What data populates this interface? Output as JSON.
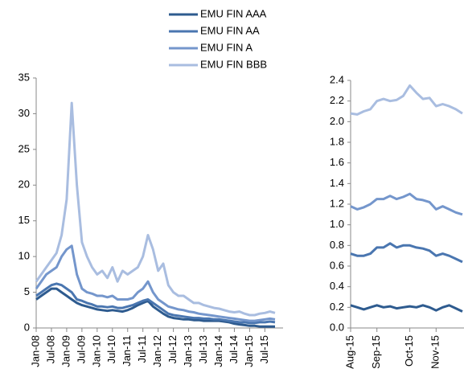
{
  "chart_data": [
    {
      "type": "line",
      "categories": [
        "Jan-08",
        null,
        null,
        "Jul-08",
        null,
        null,
        "Jan-09",
        null,
        null,
        "Jul-09",
        null,
        null,
        "Jan-10",
        null,
        null,
        "Jul-10",
        null,
        null,
        "Jan-11",
        null,
        null,
        "Jul-11",
        null,
        null,
        "Jan-12",
        null,
        null,
        "Jul-12",
        null,
        null,
        "Jan-13",
        null,
        null,
        "Jul-13",
        null,
        null,
        "Jan-14",
        null,
        null,
        "Jul-14",
        null,
        null,
        "Jan-15",
        null,
        null,
        "Jul-15",
        null,
        null
      ],
      "series": [
        {
          "name": "EMU FIN AAA",
          "color": "#2e5b8f",
          "values": [
            4,
            4.5,
            5,
            5.5,
            5.5,
            5,
            4.5,
            4,
            3.5,
            3.2,
            3,
            2.8,
            2.6,
            2.5,
            2.4,
            2.5,
            2.4,
            2.3,
            2.5,
            2.8,
            3.2,
            3.5,
            3.8,
            3,
            2.5,
            2,
            1.6,
            1.4,
            1.3,
            1.2,
            1.2,
            1.1,
            1.1,
            1,
            1,
            1,
            1,
            0.9,
            0.8,
            0.6,
            0.5,
            0.4,
            0.3,
            0.3,
            0.2,
            0.2,
            0.2,
            0.2
          ]
        },
        {
          "name": "EMU FIN AA",
          "color": "#4a76b0",
          "values": [
            4.5,
            5,
            5.5,
            6,
            6.2,
            6,
            5.5,
            5,
            4,
            3.8,
            3.5,
            3.3,
            3,
            3,
            2.9,
            3,
            2.8,
            2.8,
            3,
            3.2,
            3.5,
            3.8,
            4,
            3.5,
            3,
            2.5,
            2,
            1.8,
            1.7,
            1.6,
            1.5,
            1.4,
            1.4,
            1.3,
            1.3,
            1.2,
            1.2,
            1.1,
            1,
            0.9,
            0.8,
            0.8,
            0.7,
            0.7,
            0.8,
            0.8,
            0.9,
            0.8
          ]
        },
        {
          "name": "EMU FIN A",
          "color": "#7496cc",
          "values": [
            5.5,
            6.5,
            7.5,
            8,
            8.5,
            10,
            11,
            11.5,
            7.5,
            5.5,
            5,
            4.8,
            4.5,
            4.5,
            4.3,
            4.5,
            4,
            4,
            4,
            4.2,
            5,
            5.5,
            6.5,
            5,
            4,
            3.5,
            3,
            2.8,
            2.6,
            2.5,
            2.3,
            2.2,
            2,
            1.9,
            1.8,
            1.7,
            1.6,
            1.5,
            1.4,
            1.3,
            1.2,
            1.1,
            1,
            1,
            1.1,
            1.2,
            1.3,
            1.2
          ]
        },
        {
          "name": "EMU FIN BBB",
          "color": "#a9bde0",
          "values": [
            6.5,
            7.5,
            8.5,
            9.5,
            10.5,
            13,
            18,
            31.5,
            20,
            12,
            10,
            8.5,
            7.5,
            8,
            7,
            8.5,
            6.5,
            8,
            7.5,
            8,
            8.5,
            10,
            13,
            11,
            8,
            9,
            6,
            5,
            4.5,
            4.5,
            4,
            3.5,
            3.5,
            3.2,
            3,
            2.8,
            2.7,
            2.5,
            2.3,
            2.2,
            2.3,
            2,
            1.8,
            1.8,
            2,
            2.1,
            2.3,
            2.1
          ]
        }
      ],
      "ylim": [
        0,
        35
      ],
      "yticks": [
        0,
        5,
        10,
        15,
        20,
        25,
        30,
        35
      ],
      "grid": false
    },
    {
      "type": "line",
      "categories": [
        "Aug-15",
        null,
        null,
        null,
        "Sep-15",
        null,
        null,
        null,
        null,
        "Oct-15",
        null,
        null,
        null,
        "Nov-15",
        null,
        null,
        null,
        null
      ],
      "series": [
        {
          "color": "#2e5b8f",
          "values": [
            0.22,
            0.2,
            0.18,
            0.2,
            0.22,
            0.2,
            0.21,
            0.19,
            0.2,
            0.21,
            0.2,
            0.22,
            0.2,
            0.17,
            0.2,
            0.22,
            0.19,
            0.16
          ]
        },
        {
          "color": "#4a76b0",
          "values": [
            0.72,
            0.7,
            0.7,
            0.72,
            0.78,
            0.78,
            0.82,
            0.78,
            0.8,
            0.8,
            0.78,
            0.77,
            0.75,
            0.7,
            0.72,
            0.7,
            0.67,
            0.64
          ]
        },
        {
          "color": "#7496cc",
          "values": [
            1.18,
            1.15,
            1.17,
            1.2,
            1.25,
            1.25,
            1.28,
            1.25,
            1.27,
            1.3,
            1.25,
            1.24,
            1.22,
            1.15,
            1.18,
            1.15,
            1.12,
            1.1
          ]
        },
        {
          "color": "#a9bde0",
          "values": [
            2.08,
            2.07,
            2.1,
            2.12,
            2.2,
            2.22,
            2.2,
            2.21,
            2.25,
            2.35,
            2.28,
            2.22,
            2.23,
            2.15,
            2.17,
            2.15,
            2.12,
            2.08
          ]
        }
      ],
      "ylim": [
        0,
        2.4
      ],
      "yticks": [
        {
          "value": 0,
          "label": "0.0"
        },
        0.2,
        0.4,
        0.6,
        0.8,
        {
          "value": 1,
          "label": "1.0"
        },
        1.2,
        1.4,
        1.6,
        1.8,
        {
          "value": 2,
          "label": "2.0"
        },
        2.2,
        2.4
      ],
      "grid": false
    }
  ]
}
